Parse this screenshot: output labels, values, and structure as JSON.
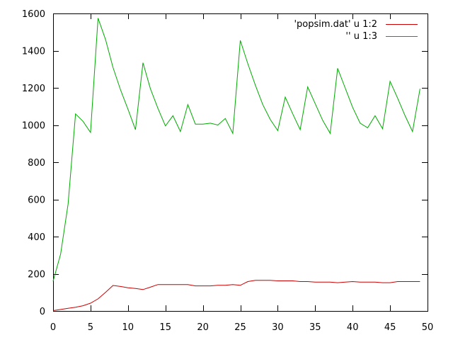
{
  "chart_data": {
    "type": "line",
    "title": "",
    "xlabel": "",
    "ylabel": "",
    "xlim": [
      0,
      50
    ],
    "ylim": [
      0,
      1600
    ],
    "grid": false,
    "legend_position": "top-right",
    "x_ticks": [
      {
        "value": 0,
        "label": "0"
      },
      {
        "value": 5,
        "label": "5"
      },
      {
        "value": 10,
        "label": "10"
      },
      {
        "value": 15,
        "label": "15"
      },
      {
        "value": 20,
        "label": "20"
      },
      {
        "value": 25,
        "label": "25"
      },
      {
        "value": 30,
        "label": "30"
      },
      {
        "value": 35,
        "label": "35"
      },
      {
        "value": 40,
        "label": "40"
      },
      {
        "value": 45,
        "label": "45"
      },
      {
        "value": 50,
        "label": "50"
      }
    ],
    "y_ticks": [
      {
        "value": 0,
        "label": "0"
      },
      {
        "value": 200,
        "label": "200"
      },
      {
        "value": 400,
        "label": "400"
      },
      {
        "value": 600,
        "label": "600"
      },
      {
        "value": 800,
        "label": "800"
      },
      {
        "value": 1000,
        "label": "1000"
      },
      {
        "value": 1200,
        "label": "1200"
      },
      {
        "value": 1400,
        "label": "1400"
      },
      {
        "value": 1600,
        "label": "1600"
      }
    ],
    "series": [
      {
        "name": "'popsim.dat' u 1:2",
        "color": "#cc0000",
        "x": [
          0,
          1,
          2,
          3,
          4,
          5,
          6,
          7,
          8,
          9,
          10,
          11,
          12,
          13,
          14,
          15,
          16,
          17,
          18,
          19,
          20,
          21,
          22,
          23,
          24,
          25,
          26,
          27,
          28,
          29,
          30,
          31,
          32,
          33,
          34,
          35,
          36,
          37,
          38,
          39,
          40,
          41,
          42,
          43,
          44,
          45,
          46,
          47,
          48,
          49
        ],
        "y": [
          2,
          8,
          14,
          20,
          28,
          42,
          65,
          100,
          137,
          132,
          125,
          121,
          115,
          128,
          142,
          142,
          142,
          142,
          142,
          135,
          135,
          135,
          138,
          138,
          142,
          138,
          158,
          165,
          165,
          165,
          162,
          162,
          162,
          158,
          158,
          155,
          155,
          155,
          152,
          155,
          158,
          155,
          155,
          155,
          152,
          152,
          158,
          158,
          158,
          158
        ]
      },
      {
        "name": "'' u 1:3",
        "color": "#00aa00",
        "x": [
          0,
          1,
          2,
          3,
          4,
          5,
          6,
          7,
          8,
          9,
          10,
          11,
          12,
          13,
          14,
          15,
          16,
          17,
          18,
          19,
          20,
          21,
          22,
          23,
          24,
          25,
          26,
          27,
          28,
          29,
          30,
          31,
          32,
          33,
          34,
          35,
          36,
          37,
          38,
          39,
          40,
          41,
          42,
          43,
          44,
          45,
          46,
          47,
          48,
          49
        ],
        "y": [
          160,
          305,
          575,
          1060,
          1020,
          960,
          1575,
          1460,
          1310,
          1190,
          1085,
          975,
          1335,
          1195,
          1090,
          995,
          1050,
          965,
          1110,
          1005,
          1005,
          1010,
          1000,
          1035,
          955,
          1455,
          1330,
          1215,
          1110,
          1030,
          970,
          1150,
          1060,
          975,
          1205,
          1115,
          1025,
          955,
          1305,
          1200,
          1095,
          1010,
          985,
          1050,
          980,
          1235,
          1145,
          1050,
          965,
          1195
        ]
      }
    ]
  }
}
